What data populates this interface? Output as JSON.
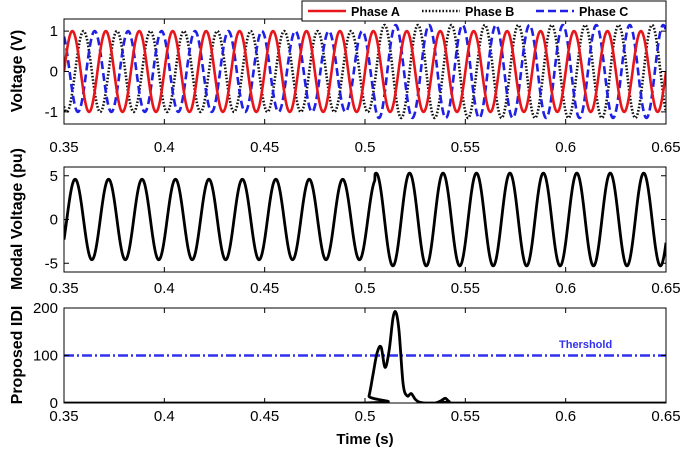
{
  "colors": {
    "phase_a": "#e8161b",
    "phase_b": "#111111",
    "phase_c": "#1f1fe6",
    "modal": "#000000",
    "idi": "#000000",
    "threshold": "#3030ee"
  },
  "chart_data": [
    {
      "type": "line",
      "title": "",
      "xlabel": "",
      "ylabel": "Voltage (V)",
      "xlim": [
        0.35,
        0.65
      ],
      "ylim": [
        -1.3,
        1.3
      ],
      "x_ticks": [
        "0.35",
        "0.4",
        "0.45",
        "0.5",
        "0.55",
        "0.6",
        "0.65"
      ],
      "y_ticks": [
        "-1",
        "0",
        "1"
      ],
      "legend_position": "top-right",
      "series": [
        {
          "name": "Phase A",
          "style": "solid",
          "frequency_hz": 60,
          "amplitude_before": 1.0,
          "amplitude_after": 1.0,
          "phase_deg": 0
        },
        {
          "name": "Phase B",
          "style": "dotted",
          "frequency_hz": 60,
          "amplitude_before": 1.0,
          "amplitude_after": 1.15,
          "phase_deg": -120
        },
        {
          "name": "Phase C",
          "style": "dashed",
          "frequency_hz": 60,
          "amplitude_before": 1.0,
          "amplitude_after": 1.15,
          "phase_deg": 120
        }
      ],
      "event_time": 0.505
    },
    {
      "type": "line",
      "title": "",
      "xlabel": "",
      "ylabel": "Modal Voltage (pu)",
      "xlim": [
        0.35,
        0.65
      ],
      "ylim": [
        -6,
        6
      ],
      "x_ticks": [
        "0.35",
        "0.4",
        "0.45",
        "0.5",
        "0.55",
        "0.6",
        "0.65"
      ],
      "y_ticks": [
        "-5",
        "0",
        "5"
      ],
      "series": [
        {
          "frequency_hz": 60,
          "amplitude_before": 4.6,
          "amplitude_after": 5.3,
          "phase_deg": -30
        }
      ],
      "event_time": 0.505
    },
    {
      "type": "line",
      "title": "",
      "xlabel": "Time (s)",
      "ylabel": "Proposed IDI",
      "xlim": [
        0.35,
        0.65
      ],
      "ylim": [
        0,
        200
      ],
      "x_ticks": [
        "0.35",
        "0.4",
        "0.45",
        "0.5",
        "0.55",
        "0.6",
        "0.65"
      ],
      "y_ticks": [
        "0",
        "100",
        "200"
      ],
      "series": [
        {
          "x": [
            0.35,
            0.5,
            0.502,
            0.504,
            0.506,
            0.508,
            0.51,
            0.512,
            0.514,
            0.5155,
            0.517,
            0.519,
            0.521,
            0.523,
            0.525,
            0.527,
            0.53,
            0.535,
            0.538,
            0.54,
            0.542,
            0.545,
            0.65
          ],
          "y": [
            0,
            0,
            15,
            60,
            105,
            118,
            75,
            110,
            180,
            190,
            150,
            40,
            15,
            20,
            8,
            2,
            0,
            0,
            5,
            10,
            3,
            0,
            0
          ]
        }
      ],
      "threshold": {
        "value": 100,
        "label": "Thershold"
      }
    }
  ]
}
